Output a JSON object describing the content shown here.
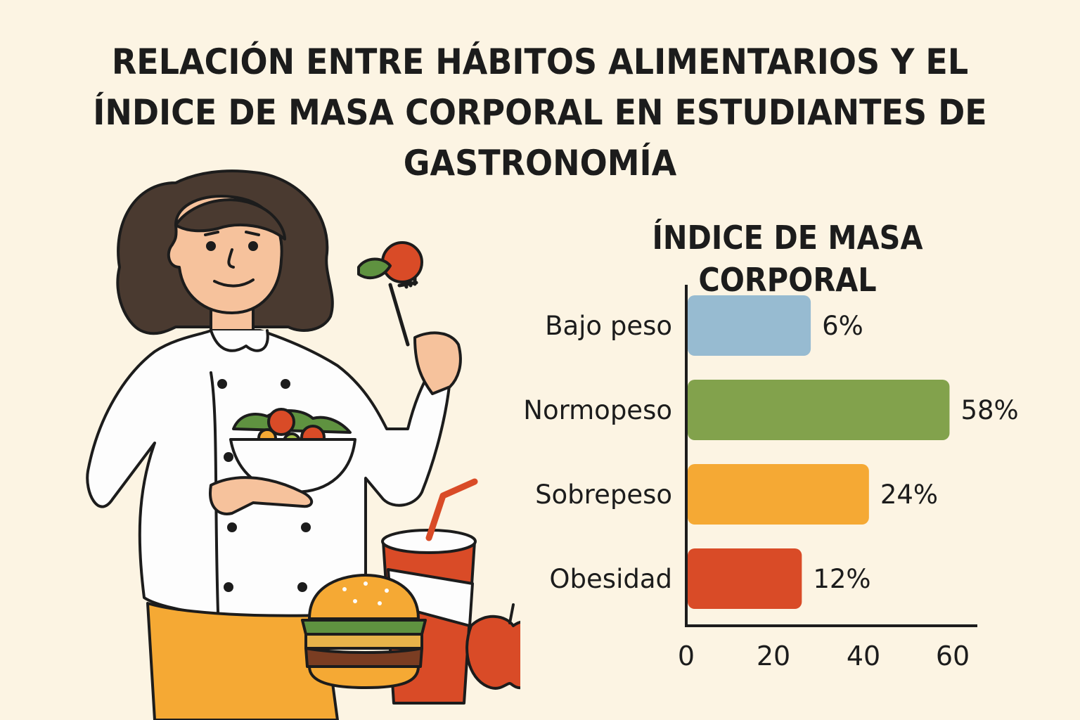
{
  "title_lines": [
    "RELACIÓN ENTRE HÁBITOS ALIMENTARIOS Y EL",
    "ÍNDICE DE MASA CORPORAL EN ESTUDIANTES DE",
    "GASTRONOMÍA"
  ],
  "chart_data": {
    "type": "bar",
    "orientation": "horizontal",
    "title": "ÍNDICE DE MASA CORPORAL",
    "categories": [
      "Bajo peso",
      "Normopeso",
      "Sobrepeso",
      "Obesidad"
    ],
    "values": [
      6,
      58,
      24,
      12
    ],
    "value_labels": [
      "6%",
      "58%",
      "24%",
      "12%"
    ],
    "colors": [
      "#97bbd1",
      "#82a24c",
      "#f5a934",
      "#d94b27"
    ],
    "xticks": [
      "0",
      "20",
      "40",
      "60"
    ],
    "xlim": [
      0,
      60
    ],
    "grid": false,
    "legend": "none"
  }
}
